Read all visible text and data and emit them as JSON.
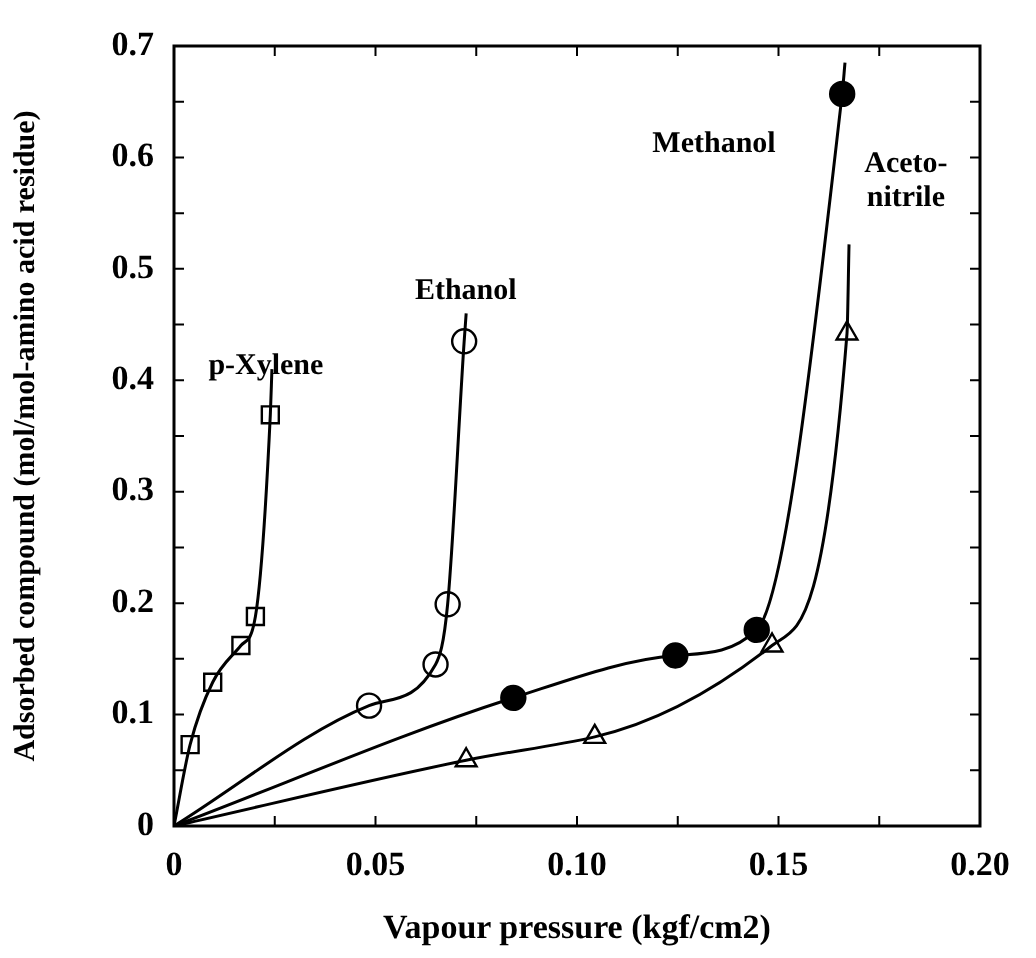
{
  "chart_data": {
    "type": "scatter",
    "xlabel": "Vapour pressure (kgf/cm2)",
    "ylabel": "Adsorbed compound (mol/mol-amino acid residue)",
    "xlim": [
      0,
      0.2
    ],
    "ylim": [
      0,
      0.7
    ],
    "xticks": [
      0,
      {
        "value": 0.025,
        "label": null
      },
      {
        "value": 0.05,
        "label": "0.05"
      },
      {
        "value": 0.075,
        "label": null
      },
      {
        "value": 0.1,
        "label": "0.10"
      },
      {
        "value": 0.125,
        "label": null
      },
      {
        "value": 0.15,
        "label": "0.15"
      },
      {
        "value": 0.175,
        "label": null
      },
      {
        "value": 0.2,
        "label": "0.20"
      }
    ],
    "yticks": [
      0,
      {
        "value": 0.05,
        "label": null
      },
      0.1,
      {
        "value": 0.15,
        "label": null
      },
      0.2,
      {
        "value": 0.25,
        "label": null
      },
      0.3,
      {
        "value": 0.35,
        "label": null
      },
      0.4,
      {
        "value": 0.45,
        "label": null
      },
      0.5,
      {
        "value": 0.55,
        "label": null
      },
      0.6,
      {
        "value": 0.65,
        "label": null
      },
      0.7
    ],
    "grid": false,
    "legend": false,
    "series": [
      {
        "type": "line",
        "marker": "none",
        "color": "#000000",
        "x": [
          0,
          0.004,
          0.0096,
          0.0166,
          0.0202,
          0.0239,
          0.0243
        ],
        "values": [
          0,
          0.073,
          0.129,
          0.162,
          0.188,
          0.369,
          0.41
        ]
      },
      {
        "type": "line",
        "marker": "none",
        "color": "#000000",
        "x": [
          0,
          0.0484,
          0.0649,
          0.0679,
          0.072,
          0.0725
        ],
        "values": [
          0,
          0.108,
          0.145,
          0.199,
          0.435,
          0.46
        ]
      },
      {
        "type": "line",
        "marker": "none",
        "color": "#000000",
        "x": [
          0,
          0.0842,
          0.1244,
          0.1446,
          0.1658,
          0.1665
        ],
        "values": [
          0,
          0.115,
          0.153,
          0.176,
          0.657,
          0.685
        ]
      },
      {
        "type": "line",
        "marker": "none",
        "color": "#000000",
        "x": [
          0,
          0.0725,
          0.1044,
          0.1484,
          0.167,
          0.1675
        ],
        "values": [
          0,
          0.059,
          0.08,
          0.162,
          0.442,
          0.522
        ]
      },
      {
        "marker": "square",
        "color": "#ffffff",
        "x": [
          0.004,
          0.0096,
          0.0166,
          0.0202,
          0.0239
        ],
        "values": [
          0.073,
          0.129,
          0.162,
          0.188,
          0.369
        ]
      },
      {
        "marker": "circle",
        "color": "#ffffff",
        "x": [
          0.0484,
          0.0649,
          0.0679,
          0.072
        ],
        "values": [
          0.108,
          0.145,
          0.199,
          0.435
        ]
      },
      {
        "marker": "circle",
        "color": "#000000",
        "x": [
          0.0842,
          0.1244,
          0.1446,
          0.1658
        ],
        "values": [
          0.115,
          0.153,
          0.176,
          0.657
        ]
      },
      {
        "marker": "triangle",
        "color": "#ffffff",
        "x": [
          0.0725,
          0.1044,
          0.1484,
          0.167
        ],
        "values": [
          0.059,
          0.08,
          0.162,
          0.442
        ]
      }
    ],
    "annotations": [
      "p-Xylene",
      "Ethanol",
      "Methanol",
      "Aceto-\nnitrile"
    ]
  }
}
